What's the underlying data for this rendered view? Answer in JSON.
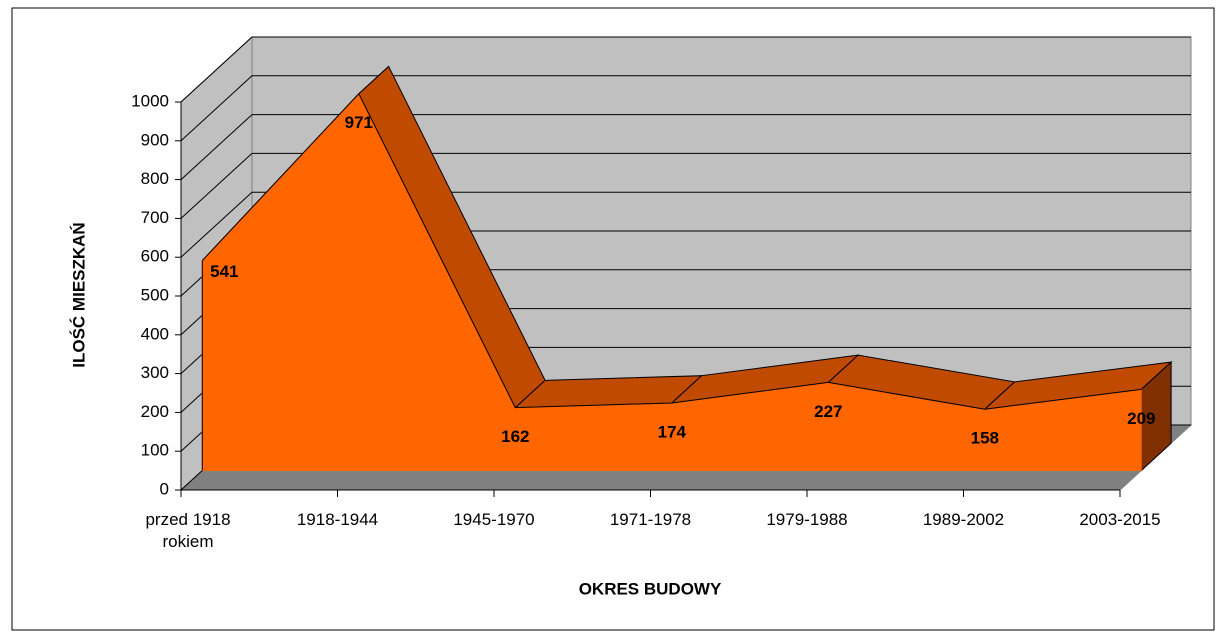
{
  "chart_data": {
    "type": "area3d",
    "xlabel": "OKRES BUDOWY",
    "ylabel": "ILOŚĆ MIESZKAŃ",
    "categories": [
      "przed 1918 rokiem",
      "1918-1944",
      "1945-1970",
      "1971-1978",
      "1979-1988",
      "1989-2002",
      "2003-2015"
    ],
    "values": [
      541,
      971,
      162,
      174,
      227,
      158,
      209
    ],
    "color": "#ff6600",
    "ylim": [
      0,
      1000
    ],
    "yticks": [
      0,
      100,
      200,
      300,
      400,
      500,
      600,
      700,
      800,
      900,
      1000
    ],
    "grid": true
  }
}
